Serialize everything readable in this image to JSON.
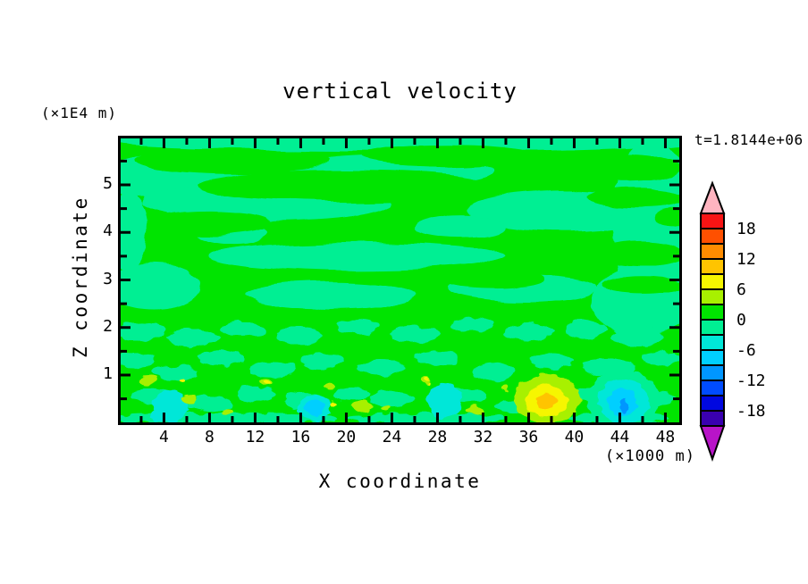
{
  "chart_data": {
    "type": "contour",
    "title": "vertical velocity",
    "timestamp_label": "t=1.8144e+06",
    "contour_interval": 3,
    "x_axis": {
      "title": "X coordinate",
      "unit_label": "(×1000 m)",
      "range": [
        0.2,
        49.2
      ],
      "major_ticks": [
        4,
        8,
        12,
        16,
        20,
        24,
        28,
        32,
        36,
        40,
        44,
        48
      ],
      "minor_ticks": [
        2,
        6,
        10,
        14,
        18,
        22,
        26,
        30,
        34,
        38,
        42,
        46
      ]
    },
    "z_axis": {
      "title": "Z coordinate",
      "unit_label": "(×1E4 m)",
      "range": [
        0,
        5.97
      ],
      "major_ticks": [
        1,
        2,
        3,
        4,
        5
      ],
      "minor_ticks": [
        0.5,
        1.5,
        2.5,
        3.5,
        4.5,
        5.5
      ]
    },
    "colorbar": {
      "tick_labels": [
        "18",
        "12",
        "6",
        "0",
        "-6",
        "-12",
        "-18"
      ],
      "label_boundaries": [
        1,
        3,
        5,
        7,
        9,
        11,
        13
      ],
      "over_color": "#ffb4c0",
      "under_color": "#b814c8",
      "cells": [
        {
          "range": "18..21",
          "color": "#f81414"
        },
        {
          "range": "15..18",
          "color": "#ff5000"
        },
        {
          "range": "12..15",
          "color": "#ff8c00"
        },
        {
          "range": "9..12",
          "color": "#ffc400"
        },
        {
          "range": "6..9",
          "color": "#f6f600"
        },
        {
          "range": "3..6",
          "color": "#a8f000"
        },
        {
          "range": "0..3",
          "color": "#00e400"
        },
        {
          "range": "-3..0",
          "color": "#00ef93"
        },
        {
          "range": "-6..-3",
          "color": "#00e7d8"
        },
        {
          "range": "-9..-6",
          "color": "#00cfff"
        },
        {
          "range": "-12..-9",
          "color": "#0096ff"
        },
        {
          "range": "-15..-12",
          "color": "#004cff"
        },
        {
          "range": "-18..-15",
          "color": "#0008e0"
        },
        {
          "range": "-21..-18",
          "color": "#3a00b0"
        }
      ]
    },
    "palette": {
      "green": "#00e400",
      "mint": "#00ef93",
      "turquoise": "#00e7d8",
      "cyan": "#00cfff",
      "sky": "#0096ff",
      "chartreuse": "#a8f000",
      "yellow": "#f6f600",
      "gold": "#ffc400"
    },
    "field": {
      "note": "blobs are [x, z, rx, rz] in data units; field base value band 0..3 (green)",
      "layers": [
        {
          "name": "mint-bands",
          "level": "-3..0",
          "color": "mint",
          "filter": "smooth",
          "blobs": [
            [
              24.5,
              5.93,
              26,
              0.22
            ],
            [
              5,
              5.15,
              7,
              0.5
            ],
            [
              24,
              5.3,
              9,
              0.3
            ],
            [
              13,
              4.62,
              11,
              0.38
            ],
            [
              39,
              4.45,
              8.5,
              0.42
            ],
            [
              46.8,
              4.0,
              3.4,
              2.1
            ],
            [
              45.8,
              2.55,
              4.2,
              0.75
            ],
            [
              21,
              3.5,
              13,
              0.3
            ],
            [
              3,
              2.85,
              4.2,
              0.48
            ],
            [
              18.5,
              2.68,
              7.5,
              0.28
            ],
            [
              35.5,
              2.82,
              6.5,
              0.28
            ],
            [
              10,
              3.95,
              3,
              0.22
            ],
            [
              30,
              4.12,
              4,
              0.22
            ],
            [
              0.8,
              4.0,
              1.8,
              0.8
            ]
          ]
        },
        {
          "name": "green-streaks",
          "level": "0..3",
          "color": "green",
          "filter": "smooth",
          "blobs": [
            [
              10,
              5.5,
              8.5,
              0.28
            ],
            [
              29,
              5.62,
              7.5,
              0.22
            ],
            [
              20,
              4.98,
              13,
              0.32
            ],
            [
              44.5,
              5.35,
              4.8,
              0.26
            ],
            [
              45.5,
              4.72,
              4.2,
              0.22
            ],
            [
              45.8,
              3.55,
              4,
              0.26
            ],
            [
              46,
              2.9,
              3.6,
              0.18
            ],
            [
              8,
              4.18,
              5.5,
              0.26
            ],
            [
              33,
              3.02,
              4.5,
              0.2
            ],
            [
              48.5,
              4.3,
              1.5,
              0.18
            ]
          ]
        },
        {
          "name": "mint-speckles",
          "level": "-3..0",
          "color": "mint",
          "filter": "rough",
          "blobs": [
            [
              2,
              1.92,
              2,
              0.2
            ],
            [
              6.5,
              1.78,
              2.3,
              0.18
            ],
            [
              11,
              1.96,
              1.9,
              0.17
            ],
            [
              16,
              1.82,
              2.1,
              0.18
            ],
            [
              21,
              2.02,
              1.9,
              0.16
            ],
            [
              26,
              1.86,
              2.2,
              0.18
            ],
            [
              31,
              2.06,
              1.9,
              0.16
            ],
            [
              36,
              1.9,
              2.1,
              0.18
            ],
            [
              41,
              1.96,
              1.9,
              0.18
            ],
            [
              45.5,
              1.8,
              2.2,
              0.2
            ],
            [
              1.5,
              1.32,
              1.7,
              0.18
            ],
            [
              5,
              1.05,
              1.9,
              0.16
            ],
            [
              9,
              1.36,
              1.9,
              0.16
            ],
            [
              13.5,
              1.12,
              2.1,
              0.18
            ],
            [
              18,
              1.3,
              1.9,
              0.16
            ],
            [
              23,
              1.16,
              2.1,
              0.16
            ],
            [
              28,
              1.36,
              1.9,
              0.16
            ],
            [
              33,
              1.06,
              1.9,
              0.18
            ],
            [
              38,
              1.3,
              1.9,
              0.16
            ],
            [
              43,
              1.16,
              2.3,
              0.18
            ],
            [
              47.6,
              1.36,
              1.7,
              0.16
            ],
            [
              3,
              0.56,
              1.9,
              0.18
            ],
            [
              8,
              0.4,
              1.9,
              0.16
            ],
            [
              12,
              0.6,
              1.7,
              0.16
            ],
            [
              16.5,
              0.46,
              1.9,
              0.18
            ],
            [
              20.5,
              0.6,
              1.6,
              0.15
            ],
            [
              24,
              0.5,
              1.9,
              0.16
            ],
            [
              30.5,
              0.56,
              1.9,
              0.16
            ],
            [
              34.5,
              0.34,
              1.5,
              0.14
            ],
            [
              41.5,
              0.6,
              1.6,
              0.15
            ],
            [
              47,
              0.5,
              1.9,
              0.18
            ],
            [
              44.3,
              0.5,
              3.2,
              0.6
            ],
            [
              10,
              0.08,
              9,
              0.13
            ],
            [
              27,
              0.08,
              7,
              0.11
            ],
            [
              44,
              0.1,
              4.5,
              0.13
            ],
            [
              2,
              0.1,
              2,
              0.1
            ]
          ]
        },
        {
          "name": "turquoise-patches",
          "level": "-6..-3",
          "color": "turquoise",
          "filter": "rough",
          "blobs": [
            [
              4.6,
              0.36,
              1.6,
              0.33
            ],
            [
              17.2,
              0.32,
              1.45,
              0.3
            ],
            [
              28.6,
              0.46,
              1.55,
              0.36
            ],
            [
              3.6,
              0.12,
              0.85,
              0.11
            ],
            [
              44.3,
              0.45,
              2.2,
              0.48
            ]
          ]
        },
        {
          "name": "cyan-cores",
          "level": "-9..-6",
          "color": "cyan",
          "filter": "rough",
          "blobs": [
            [
              17.2,
              0.3,
              0.75,
              0.17
            ],
            [
              44.3,
              0.42,
              1.35,
              0.28
            ]
          ]
        },
        {
          "name": "sky-core",
          "level": "-12..-9",
          "color": "sky",
          "filter": "rough",
          "blobs": [
            [
              44.45,
              0.36,
              0.3,
              0.16
            ]
          ]
        },
        {
          "name": "chartreuse-specks",
          "level": "3..6",
          "color": "chartreuse",
          "filter": "rough",
          "blobs": [
            [
              37.6,
              0.5,
              2.9,
              0.52
            ],
            [
              2.5,
              0.9,
              0.75,
              0.1
            ],
            [
              6.2,
              0.5,
              0.65,
              0.09
            ],
            [
              13,
              0.85,
              0.45,
              0.07
            ],
            [
              18.6,
              0.75,
              0.38,
              0.06
            ],
            [
              21.5,
              0.35,
              0.85,
              0.09
            ],
            [
              27,
              0.9,
              0.38,
              0.06
            ],
            [
              31.3,
              0.25,
              0.75,
              0.09
            ],
            [
              23.5,
              0.3,
              0.45,
              0.07
            ],
            [
              9.5,
              0.22,
              0.5,
              0.07
            ],
            [
              33.8,
              0.72,
              0.35,
              0.06
            ]
          ]
        },
        {
          "name": "yellow-ring",
          "level": "6..9",
          "color": "yellow",
          "filter": "rough",
          "blobs": [
            [
              37.6,
              0.46,
              1.85,
              0.32
            ],
            [
              5.6,
              0.9,
              0.22,
              0.05
            ],
            [
              13.1,
              0.85,
              0.18,
              0.05
            ],
            [
              27.1,
              0.9,
              0.18,
              0.05
            ],
            [
              18.8,
              0.42,
              0.3,
              0.05
            ]
          ]
        },
        {
          "name": "gold-core",
          "level": "9..12",
          "color": "gold",
          "filter": "rough",
          "blobs": [
            [
              37.55,
              0.46,
              0.92,
              0.15
            ]
          ]
        }
      ]
    },
    "notable_features": [
      {
        "desc": "updraft maximum (reaches 9..12 band)",
        "x": 37.6,
        "z": 0.45
      },
      {
        "desc": "downdraft minimum (reaches -12..-9 band)",
        "x": 44.3,
        "z": 0.4
      },
      {
        "desc": "weak downdrafts (-6..-3 band)",
        "x": [
          4.6,
          17.2,
          28.6
        ],
        "z": 0.4
      }
    ]
  }
}
